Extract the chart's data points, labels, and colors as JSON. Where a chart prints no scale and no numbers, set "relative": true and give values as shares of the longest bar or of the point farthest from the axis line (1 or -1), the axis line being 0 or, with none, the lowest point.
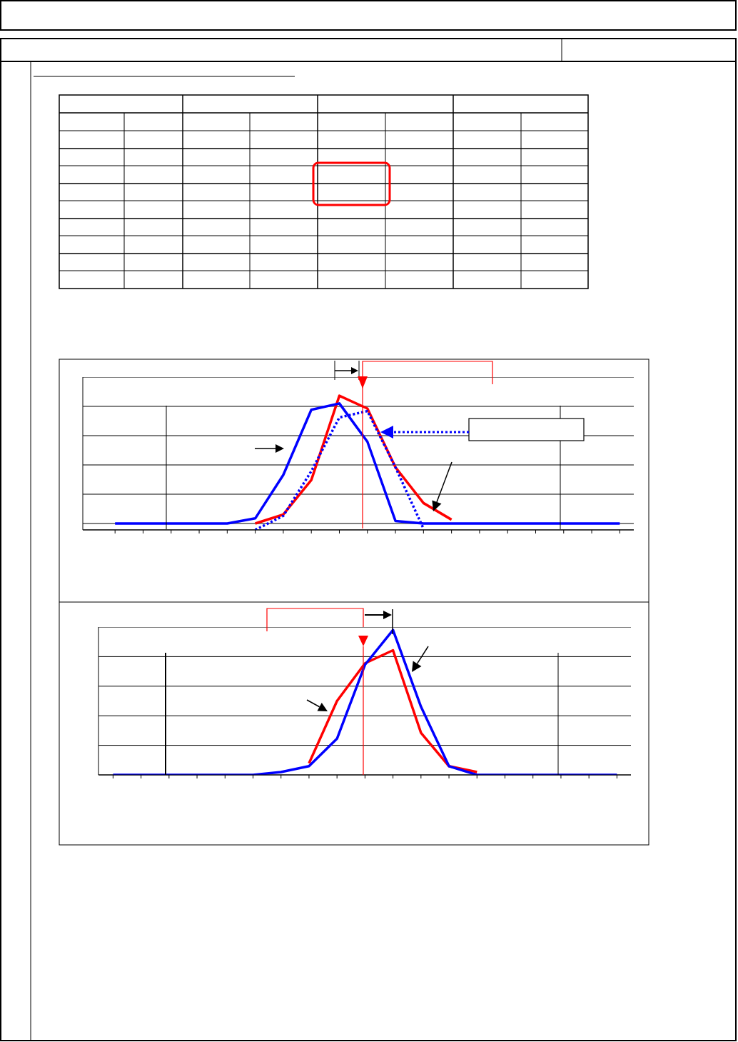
{
  "chart_data": [
    {
      "type": "line",
      "relative": true,
      "categories": [
        null,
        null,
        null,
        null,
        null,
        null,
        null,
        null,
        null,
        null,
        null,
        null,
        null,
        null,
        null,
        null,
        null,
        null,
        null
      ],
      "grid": "y",
      "marker": "none",
      "line_style": "solid",
      "series": [
        {
          "color": "#ff0000",
          "values": [
            null,
            null,
            null,
            null,
            null,
            0,
            0.07,
            0.34,
            1,
            0.9,
            0.44,
            0.16,
            0.03,
            null,
            null,
            null,
            null,
            null,
            null
          ]
        },
        {
          "color": "#0000ff",
          "line_style": "dotted",
          "values": [
            null,
            null,
            null,
            null,
            null,
            -0.05,
            0.06,
            0.41,
            0.83,
            0.88,
            0.44,
            -0.04,
            null,
            null,
            null,
            null,
            null,
            null,
            null
          ]
        },
        {
          "color": "#0000ff",
          "values": [
            0,
            0,
            0,
            0,
            0,
            0.04,
            0.38,
            0.89,
            0.94,
            0.64,
            0.02,
            0,
            0,
            0,
            0,
            0,
            0,
            0,
            0
          ]
        }
      ]
    },
    {
      "type": "line",
      "relative": true,
      "categories": [
        null,
        null,
        null,
        null,
        null,
        null,
        null,
        null,
        null,
        null,
        null,
        null,
        null,
        null,
        null,
        null,
        null,
        null,
        null
      ],
      "grid": "y",
      "marker": "none",
      "line_style": "solid",
      "series": [
        {
          "color": "#ff0000",
          "values": [
            null,
            null,
            null,
            null,
            null,
            null,
            null,
            0.08,
            0.51,
            0.77,
            0.86,
            0.29,
            0.06,
            0.02,
            null,
            null,
            null,
            null,
            null
          ]
        },
        {
          "color": "#0000ff",
          "values": [
            0,
            0,
            0,
            0,
            0,
            0,
            0.02,
            0.06,
            0.25,
            0.76,
            1,
            0.47,
            0.06,
            0,
            0,
            0,
            0,
            0,
            0
          ]
        }
      ]
    }
  ]
}
